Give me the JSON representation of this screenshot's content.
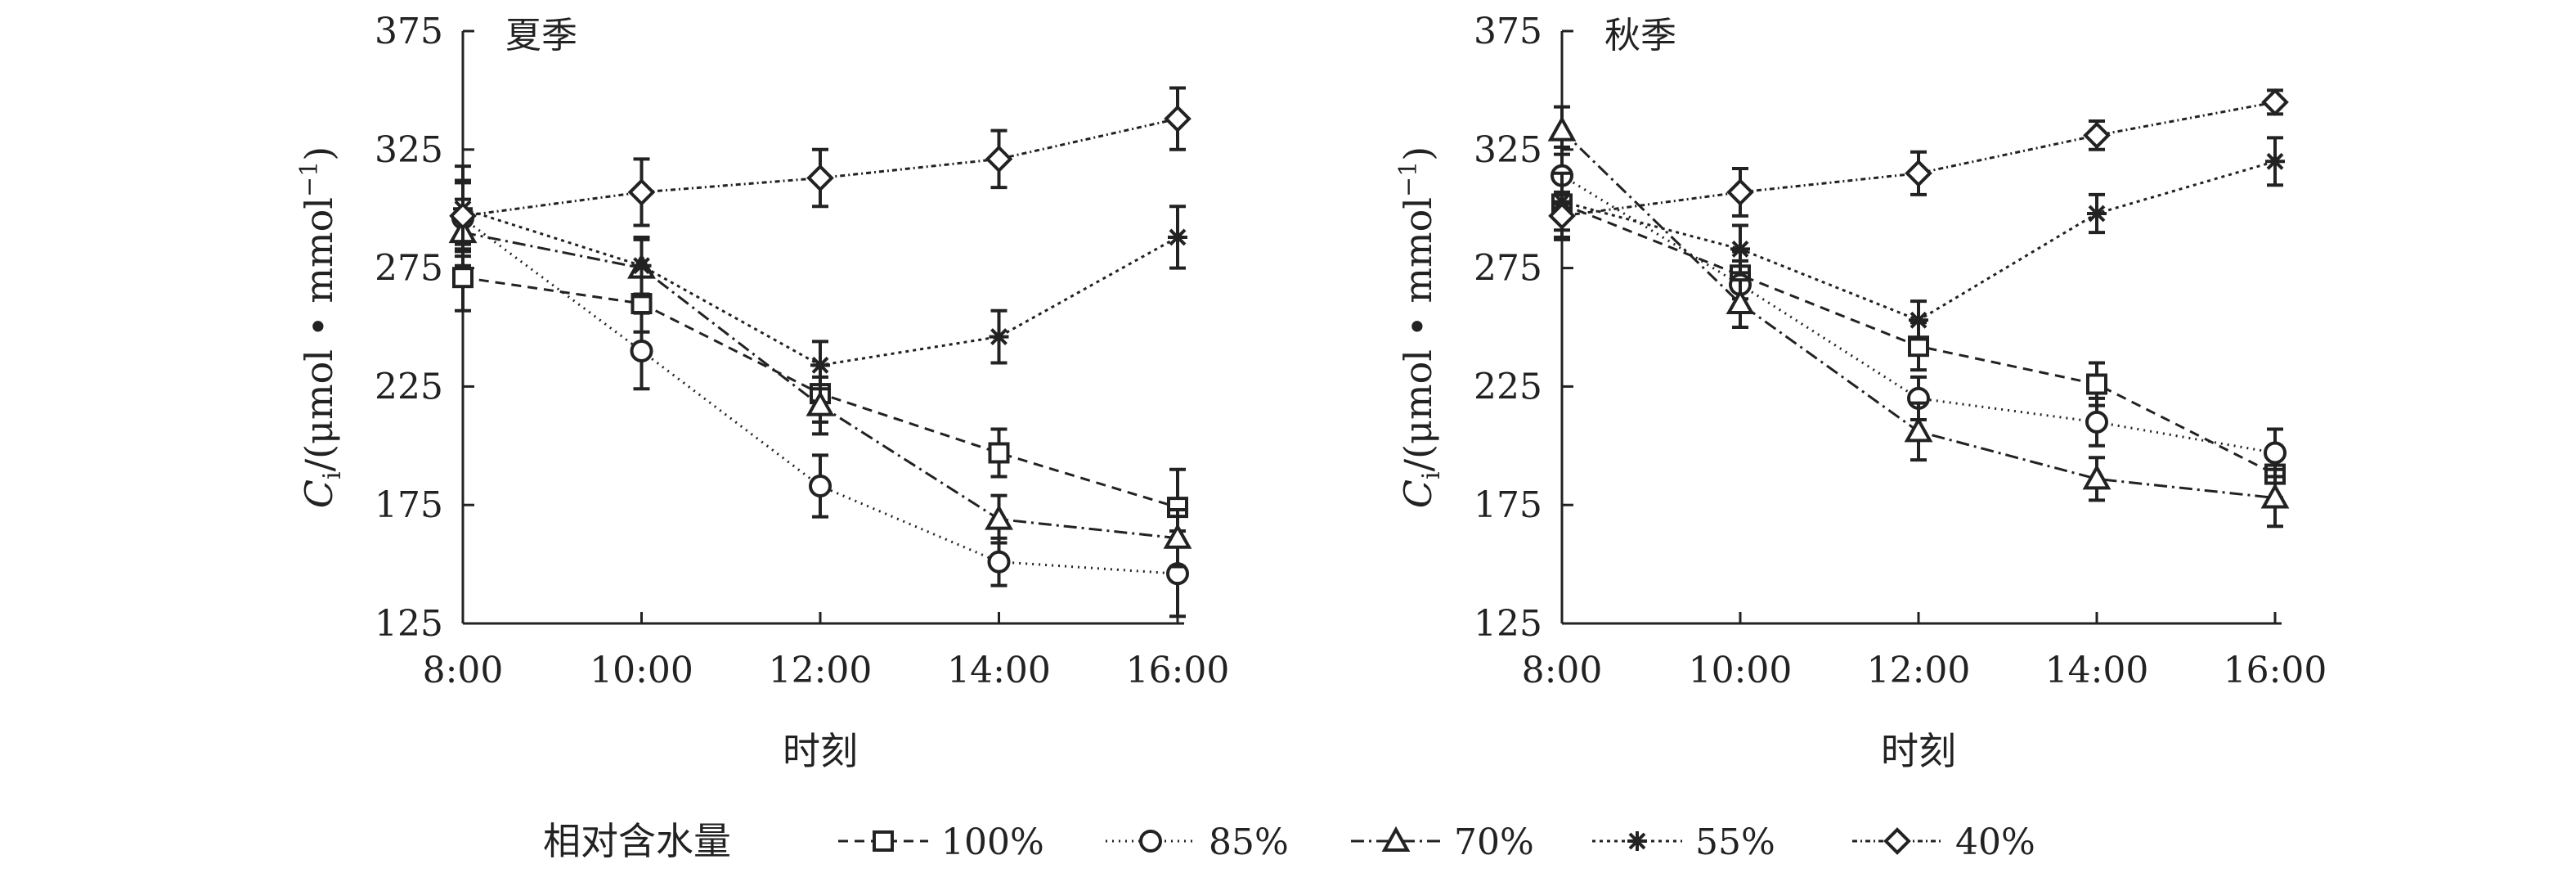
{
  "chart_data": [
    {
      "type": "line",
      "title": "夏季",
      "xlabel": "时刻",
      "ylabel_main": "C",
      "ylabel_sub": "i",
      "ylabel_rest": "/(μmol • mmol",
      "ylabel_sup": "−1",
      "ylabel_end": ")",
      "categories": [
        "8:00",
        "10:00",
        "12:00",
        "14:00",
        "16:00"
      ],
      "ylim": [
        125,
        375
      ],
      "yticks": [
        "125",
        "175",
        "225",
        "275",
        "325",
        "375"
      ],
      "series": [
        {
          "name": "100%",
          "marker": "square",
          "dash": "12,8",
          "values": [
            271,
            260,
            222,
            197,
            174
          ],
          "errors": [
            14,
            12,
            12,
            10,
            16
          ]
        },
        {
          "name": "85%",
          "marker": "circle",
          "dash": "2,6",
          "values": [
            296,
            240,
            183,
            151,
            146
          ],
          "errors": [
            16,
            16,
            13,
            10,
            18
          ]
        },
        {
          "name": "70%",
          "marker": "triangle",
          "dash": "16,6,3,6",
          "values": [
            290,
            275,
            217,
            169,
            161
          ],
          "errors": [
            14,
            12,
            12,
            10,
            12
          ]
        },
        {
          "name": "55%",
          "marker": "asterisk",
          "dash": "4,5",
          "values": [
            300,
            276,
            234,
            246,
            288
          ],
          "errors": [
            18,
            12,
            10,
            11,
            13
          ]
        },
        {
          "name": "40%",
          "marker": "diamond",
          "dash": "6,4,2,4",
          "values": [
            297,
            307,
            313,
            321,
            338
          ],
          "errors": [
            14,
            14,
            12,
            12,
            13
          ]
        }
      ]
    },
    {
      "type": "line",
      "title": "秋季",
      "xlabel": "时刻",
      "ylabel_main": "C",
      "ylabel_sub": "i",
      "ylabel_rest": "/(μmol • mmol",
      "ylabel_sup": "−1",
      "ylabel_end": ")",
      "categories": [
        "8:00",
        "10:00",
        "12:00",
        "14:00",
        "16:00"
      ],
      "ylim": [
        125,
        375
      ],
      "yticks": [
        "125",
        "175",
        "225",
        "275",
        "325",
        "375"
      ],
      "series": [
        {
          "name": "100%",
          "marker": "square",
          "dash": "12,8",
          "values": [
            302,
            272,
            242,
            226,
            188
          ],
          "errors": [
            14,
            10,
            10,
            9,
            10
          ]
        },
        {
          "name": "85%",
          "marker": "circle",
          "dash": "2,6",
          "values": [
            314,
            268,
            220,
            210,
            197
          ],
          "errors": [
            12,
            10,
            9,
            10,
            10
          ]
        },
        {
          "name": "70%",
          "marker": "triangle",
          "dash": "16,6,3,6",
          "values": [
            333,
            260,
            206,
            186,
            178
          ],
          "errors": [
            10,
            10,
            12,
            9,
            12
          ]
        },
        {
          "name": "55%",
          "marker": "asterisk",
          "dash": "4,5",
          "values": [
            303,
            283,
            253,
            298,
            320
          ],
          "errors": [
            12,
            10,
            8,
            8,
            10
          ]
        },
        {
          "name": "40%",
          "marker": "diamond",
          "dash": "6,4,2,4",
          "values": [
            297,
            307,
            315,
            331,
            345
          ],
          "errors": [
            10,
            10,
            9,
            6,
            5
          ]
        }
      ]
    }
  ],
  "legend": {
    "title": "相对含水量",
    "items": [
      "100%",
      "85%",
      "70%",
      "55%",
      "40%"
    ]
  }
}
